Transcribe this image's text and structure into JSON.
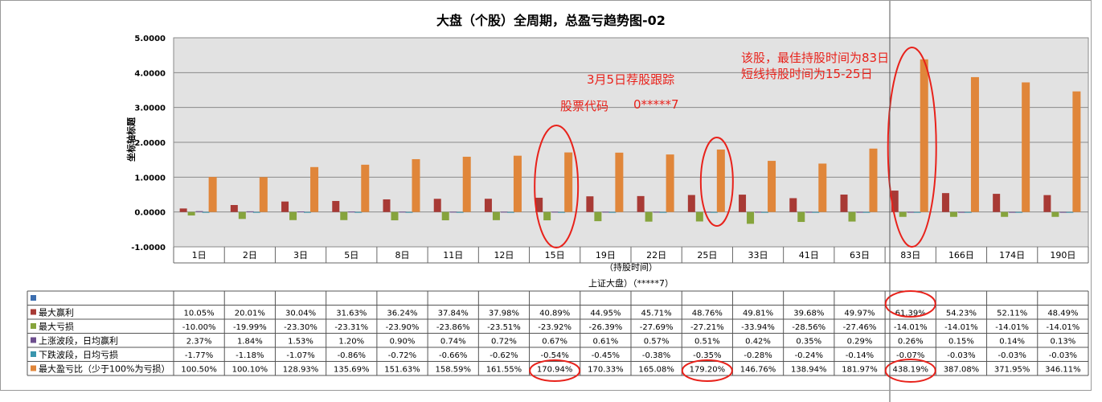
{
  "chart_data": {
    "type": "bar",
    "title": "大盘（个股）全周期，总盈亏趋势图-02",
    "ylabel": "坐标轴标题",
    "xlabel": "（持股时间）",
    "xlabel2": "上证大盘）（*****7）",
    "ylim": [
      -1.0,
      5.0
    ],
    "yticks": [
      "5.0000",
      "4.0000",
      "3.0000",
      "2.0000",
      "1.0000",
      "0.0000",
      "-1.0000"
    ],
    "categories": [
      "1日",
      "2日",
      "3日",
      "5日",
      "8日",
      "11日",
      "12日",
      "15日",
      "19日",
      "22日",
      "25日",
      "33日",
      "41日",
      "63日",
      "83日",
      "166日",
      "174日",
      "190日"
    ],
    "series": [
      {
        "name": "最大赢利",
        "color": "#a83a35",
        "values": [
          0.1005,
          0.2001,
          0.3004,
          0.3163,
          0.3624,
          0.3784,
          0.3798,
          0.4089,
          0.4495,
          0.4571,
          0.4876,
          0.4981,
          0.3968,
          0.4997,
          0.6139,
          0.5423,
          0.5211,
          0.4849
        ],
        "labels": [
          "10.05%",
          "20.01%",
          "30.04%",
          "31.63%",
          "36.24%",
          "37.84%",
          "37.98%",
          "40.89%",
          "44.95%",
          "45.71%",
          "48.76%",
          "49.81%",
          "39.68%",
          "49.97%",
          "61.39%",
          "54.23%",
          "52.11%",
          "48.49%"
        ]
      },
      {
        "name": "最大亏损",
        "color": "#86a43c",
        "values": [
          -0.1,
          -0.1999,
          -0.233,
          -0.2331,
          -0.239,
          -0.2386,
          -0.2351,
          -0.2392,
          -0.2639,
          -0.2769,
          -0.2721,
          -0.3394,
          -0.2856,
          -0.2746,
          -0.1401,
          -0.1401,
          -0.1401,
          -0.1401
        ],
        "labels": [
          "-10.00%",
          "-19.99%",
          "-23.30%",
          "-23.31%",
          "-23.90%",
          "-23.86%",
          "-23.51%",
          "-23.92%",
          "-26.39%",
          "-27.69%",
          "-27.21%",
          "-33.94%",
          "-28.56%",
          "-27.46%",
          "-14.01%",
          "-14.01%",
          "-14.01%",
          "-14.01%"
        ]
      },
      {
        "name": "上涨波段，日均赢利",
        "color": "#6d4e8e",
        "values": [
          0.0237,
          0.0184,
          0.0153,
          0.012,
          0.009,
          0.0074,
          0.0072,
          0.0067,
          0.0061,
          0.0057,
          0.0051,
          0.0042,
          0.0035,
          0.0029,
          0.0026,
          0.0015,
          0.0014,
          0.0013
        ],
        "labels": [
          "2.37%",
          "1.84%",
          "1.53%",
          "1.20%",
          "0.90%",
          "0.74%",
          "0.72%",
          "0.67%",
          "0.61%",
          "0.57%",
          "0.51%",
          "0.42%",
          "0.35%",
          "0.29%",
          "0.26%",
          "0.15%",
          "0.14%",
          "0.13%"
        ]
      },
      {
        "name": "下跌波段，日均亏损",
        "color": "#3a95ad",
        "values": [
          -0.0177,
          -0.0118,
          -0.0107,
          -0.0086,
          -0.0072,
          -0.0066,
          -0.0062,
          -0.0054,
          -0.0045,
          -0.0038,
          -0.0035,
          -0.0028,
          -0.0024,
          -0.0014,
          -0.0007,
          -0.0003,
          -0.0003,
          -0.0003
        ],
        "labels": [
          "-1.77%",
          "-1.18%",
          "-1.07%",
          "-0.86%",
          "-0.72%",
          "-0.66%",
          "-0.62%",
          "-0.54%",
          "-0.45%",
          "-0.38%",
          "-0.35%",
          "-0.28%",
          "-0.24%",
          "-0.14%",
          "-0.07%",
          "-0.03%",
          "-0.03%",
          "-0.03%"
        ]
      },
      {
        "name": "最大盈亏比（少于100%为亏损）",
        "color": "#e0863a",
        "values": [
          1.005,
          1.001,
          1.2893,
          1.3569,
          1.5163,
          1.5859,
          1.6155,
          1.7094,
          1.7033,
          1.6508,
          1.792,
          1.4676,
          1.3894,
          1.8197,
          4.3819,
          3.8708,
          3.7195,
          3.4611
        ],
        "labels": [
          "100.50%",
          "100.10%",
          "128.93%",
          "135.69%",
          "151.63%",
          "158.59%",
          "161.55%",
          "170.94%",
          "170.33%",
          "165.08%",
          "179.20%",
          "146.76%",
          "138.94%",
          "181.97%",
          "438.19%",
          "387.08%",
          "371.95%",
          "346.11%"
        ]
      }
    ],
    "legend_placement": "data-table-left",
    "grid": true,
    "annotations": [
      {
        "text": "3月5日荐股跟踪"
      },
      {
        "text": "股票代码"
      },
      {
        "text": "0*****7"
      },
      {
        "text": "该股，最佳持股时间为83日"
      },
      {
        "text": "短线持股时间为15-25日"
      }
    ],
    "highlighted_columns": [
      "15日",
      "25日",
      "83日"
    ],
    "colors": {
      "plot_bg": "#e2e2e2",
      "annotation": "#e8221b",
      "grid": "#8a8a8a"
    }
  }
}
